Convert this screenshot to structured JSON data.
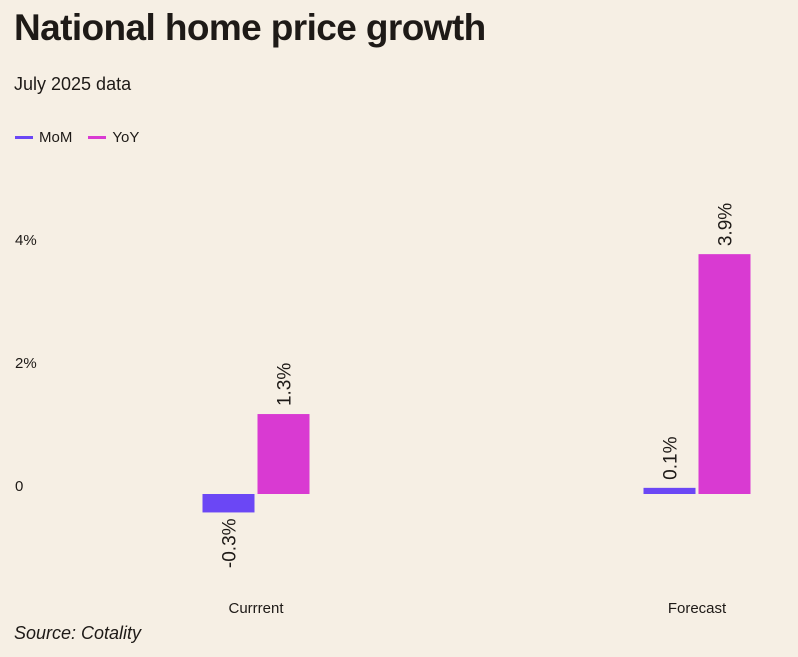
{
  "title": "National home price growth",
  "subtitle": "July 2025 data",
  "source": "Source: Cotality",
  "colors": {
    "background": "#f6efe4",
    "mom": "#6b47f5",
    "yoy": "#d93ad2"
  },
  "chart_data": {
    "type": "bar",
    "title": "National home price growth",
    "subtitle": "July 2025 data",
    "categories": [
      "Currrent",
      "Forecast"
    ],
    "series": [
      {
        "name": "MoM",
        "values": [
          -0.3,
          0.1
        ],
        "labels": [
          "-0.3%",
          "0.1%"
        ]
      },
      {
        "name": "YoY",
        "values": [
          1.3,
          3.9
        ],
        "labels": [
          "1.3%",
          "3.9%"
        ]
      }
    ],
    "yticks": [
      0,
      2,
      4
    ],
    "ytick_labels": [
      "0",
      "2%",
      "4%"
    ],
    "ylim": [
      -1.2,
      4.4
    ],
    "xlabel": "",
    "ylabel": "",
    "grid": false,
    "legend": "top-left"
  }
}
